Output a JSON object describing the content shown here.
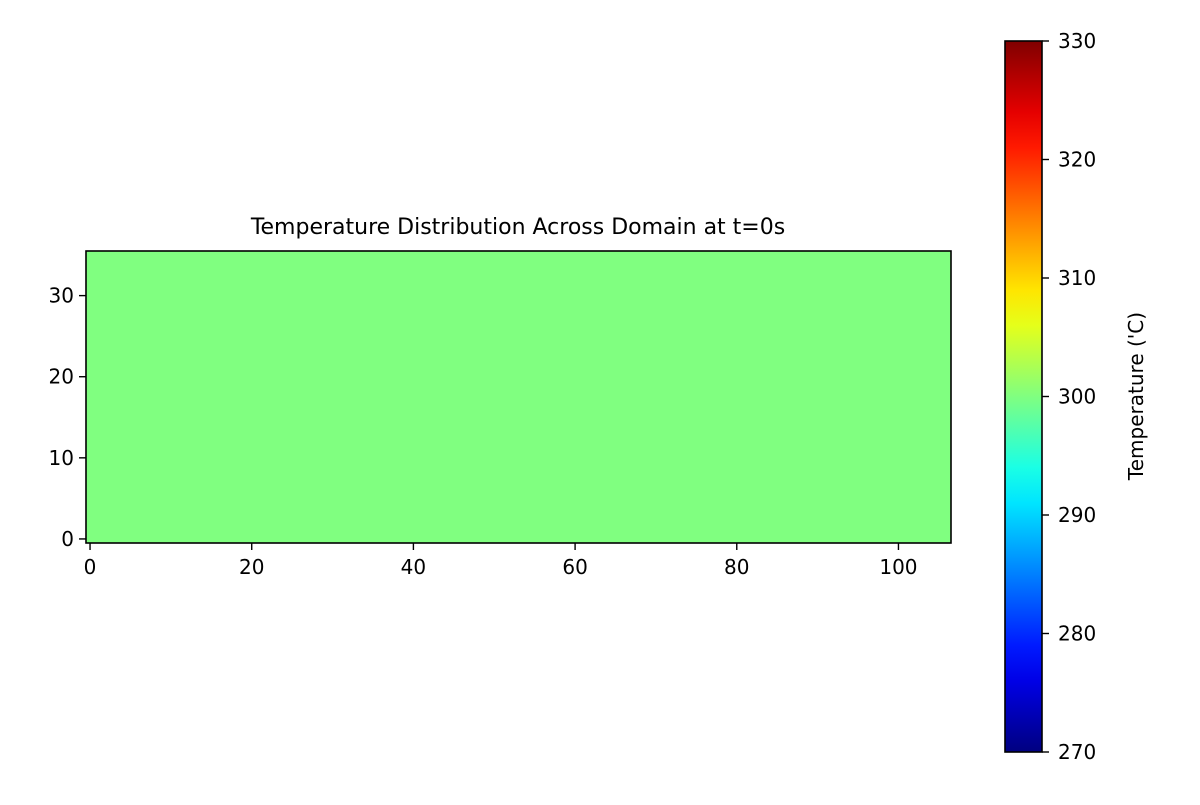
{
  "chart_data": {
    "type": "heatmap",
    "title": "Temperature Distribution Across Domain at t=0s",
    "xlabel": "",
    "ylabel": "",
    "xlim": [
      -0.5,
      106.5
    ],
    "ylim": [
      -0.5,
      35.5
    ],
    "x_ticks": [
      0,
      20,
      40,
      60,
      80,
      100
    ],
    "y_ticks": [
      0,
      10,
      20,
      30
    ],
    "grid": false,
    "field": {
      "uniform_value": 300,
      "unit": "°C"
    },
    "colorbar": {
      "label": "Temperature ('C)",
      "colormap": "jet",
      "vmin": 270,
      "vmax": 330,
      "ticks": [
        270,
        280,
        290,
        300,
        310,
        320,
        330
      ]
    }
  }
}
